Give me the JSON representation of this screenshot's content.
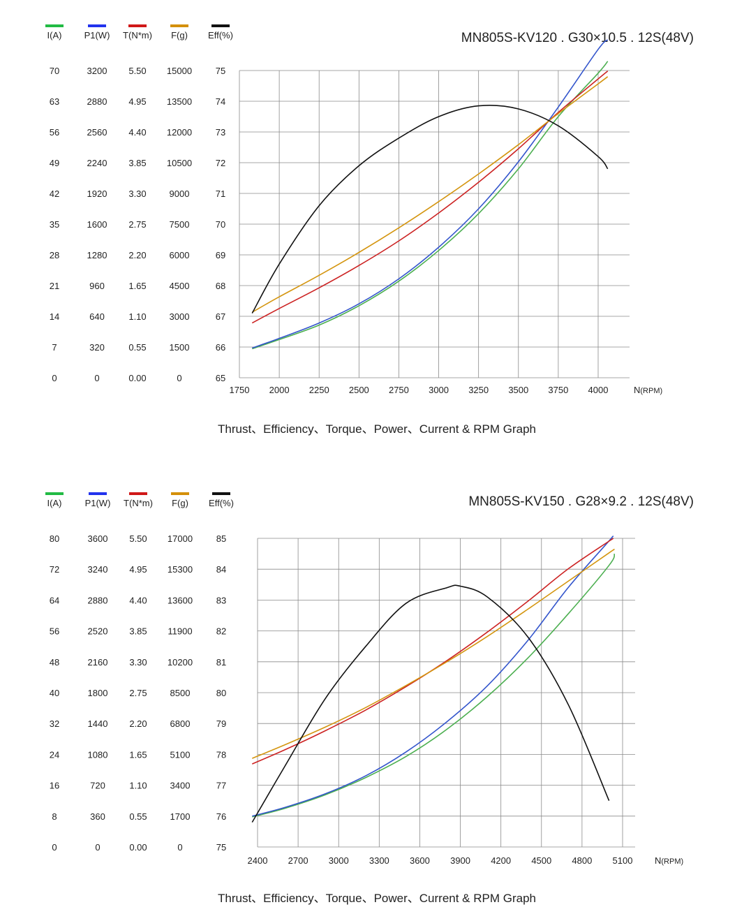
{
  "chart_data": [
    {
      "type": "line",
      "title": "MN805S-KV120 . G30×10.5 . 12S(48V)",
      "caption": "Thrust、Efficiency、Torque、Power、Current & RPM Graph",
      "xlabel_main": "N",
      "xlabel_unit": "(RPM)",
      "x_ticks": [
        "1750",
        "2000",
        "2250",
        "2500",
        "2750",
        "3000",
        "3250",
        "3500",
        "3750",
        "4000"
      ],
      "x_values": [
        1750,
        2000,
        2250,
        2500,
        2750,
        3000,
        3250,
        3500,
        3750,
        4000
      ],
      "xlim": [
        1750,
        4200
      ],
      "axes": [
        {
          "label": "I(A)",
          "color": "#22bb44",
          "ticks": [
            "70",
            "63",
            "56",
            "49",
            "42",
            "35",
            "28",
            "21",
            "14",
            "7",
            "0"
          ]
        },
        {
          "label": "P1(W)",
          "color": "#2233ee",
          "ticks": [
            "3200",
            "2880",
            "2560",
            "2240",
            "1920",
            "1600",
            "1280",
            "960",
            "640",
            "320",
            "0"
          ]
        },
        {
          "label": "T(N*m)",
          "color": "#d01818",
          "ticks": [
            "5.50",
            "4.95",
            "4.40",
            "3.85",
            "3.30",
            "2.75",
            "2.20",
            "1.65",
            "1.10",
            "0.55",
            "0.00"
          ]
        },
        {
          "label": "F(g)",
          "color": "#d4900a",
          "ticks": [
            "15000",
            "13500",
            "12000",
            "10500",
            "9000",
            "7500",
            "6000",
            "4500",
            "3000",
            "1500",
            "0"
          ]
        },
        {
          "label": "Eff(%)",
          "color": "#111111",
          "ticks": [
            "75",
            "74",
            "73",
            "72",
            "71",
            "70",
            "69",
            "68",
            "67",
            "66",
            "65"
          ]
        }
      ],
      "series": [
        {
          "name": "I(A)",
          "color": "#4caf50",
          "axis": 0,
          "x": [
            1830,
            2000,
            2250,
            2500,
            2750,
            3000,
            3250,
            3500,
            3750,
            4000,
            4060
          ],
          "y": [
            6.6,
            8.7,
            12.0,
            16.4,
            22.0,
            29.0,
            37.4,
            47.6,
            59.5,
            69.4,
            72.1
          ]
        },
        {
          "name": "P1(W)",
          "color": "#3355cc",
          "axis": 1,
          "x": [
            1830,
            2000,
            2250,
            2500,
            2750,
            3000,
            3250,
            3500,
            3750,
            4000,
            4060
          ],
          "y": [
            310,
            410,
            570,
            770,
            1030,
            1360,
            1760,
            2250,
            2820,
            3420,
            3520
          ]
        },
        {
          "name": "T(N*m)",
          "color": "#cc2222",
          "axis": 2,
          "x": [
            1830,
            2000,
            2250,
            2500,
            2750,
            3000,
            3250,
            3500,
            3750,
            4000,
            4060
          ],
          "y": [
            0.98,
            1.24,
            1.61,
            2.01,
            2.45,
            2.95,
            3.5,
            4.1,
            4.75,
            5.35,
            5.49
          ]
        },
        {
          "name": "F(g)",
          "color": "#d4950f",
          "axis": 3,
          "x": [
            1830,
            2000,
            2250,
            2500,
            2750,
            3000,
            3250,
            3500,
            3750,
            4000,
            4060
          ],
          "y": [
            3200,
            3950,
            5000,
            6120,
            7320,
            8600,
            9950,
            11380,
            12900,
            14350,
            14700
          ]
        },
        {
          "name": "Eff(%)",
          "color": "#111111",
          "axis": 4,
          "x": [
            1830,
            2000,
            2250,
            2500,
            2750,
            3000,
            3250,
            3500,
            3750,
            4000,
            4060
          ],
          "y": [
            67.1,
            68.7,
            70.6,
            71.9,
            72.8,
            73.5,
            73.85,
            73.75,
            73.2,
            72.2,
            71.8
          ]
        }
      ]
    },
    {
      "type": "line",
      "title": "MN805S-KV150 . G28×9.2 . 12S(48V)",
      "caption": "Thrust、Efficiency、Torque、Power、Current & RPM Graph",
      "xlabel_main": "N",
      "xlabel_unit": "(RPM)",
      "x_ticks": [
        "2400",
        "2700",
        "3000",
        "3300",
        "3600",
        "3900",
        "4200",
        "4500",
        "4800",
        "5100"
      ],
      "x_values": [
        2400,
        2700,
        3000,
        3300,
        3600,
        3900,
        4200,
        4500,
        4800,
        5100
      ],
      "xlim": [
        2400,
        5100
      ],
      "axes": [
        {
          "label": "I(A)",
          "color": "#22bb44",
          "ticks": [
            "80",
            "72",
            "64",
            "56",
            "48",
            "40",
            "32",
            "24",
            "16",
            "8",
            "0"
          ]
        },
        {
          "label": "P1(W)",
          "color": "#2233ee",
          "ticks": [
            "3600",
            "3240",
            "2880",
            "2520",
            "2160",
            "1800",
            "1440",
            "1080",
            "720",
            "360",
            "0"
          ]
        },
        {
          "label": "T(N*m)",
          "color": "#d01818",
          "ticks": [
            "5.50",
            "4.95",
            "4.40",
            "3.85",
            "3.30",
            "2.75",
            "2.20",
            "1.65",
            "1.10",
            "0.55",
            "0.00"
          ]
        },
        {
          "label": "F(g)",
          "color": "#d4900a",
          "ticks": [
            "17000",
            "15300",
            "13600",
            "11900",
            "10200",
            "8500",
            "6800",
            "5100",
            "3400",
            "1700",
            "0"
          ]
        },
        {
          "label": "Eff(%)",
          "color": "#111111",
          "ticks": [
            "85",
            "84",
            "83",
            "82",
            "81",
            "80",
            "79",
            "78",
            "77",
            "76",
            "75"
          ]
        }
      ],
      "series": [
        {
          "name": "I(A)",
          "color": "#4caf50",
          "axis": 0,
          "x": [
            2360,
            2600,
            2900,
            3200,
            3500,
            3800,
            4100,
            4400,
            4700,
            5000,
            5040
          ],
          "y": [
            7.8,
            10.0,
            13.5,
            18.0,
            23.5,
            30.5,
            39.0,
            49.0,
            60.5,
            73.0,
            76.0
          ]
        },
        {
          "name": "P1(W)",
          "color": "#3355cc",
          "axis": 1,
          "x": [
            2360,
            2600,
            2900,
            3200,
            3500,
            3800,
            4100,
            4400,
            4700,
            5000,
            5020
          ],
          "y": [
            360,
            460,
            620,
            830,
            1110,
            1460,
            1880,
            2410,
            3030,
            3570,
            3610
          ]
        },
        {
          "name": "T(N*m)",
          "color": "#cc2222",
          "axis": 2,
          "x": [
            2360,
            2600,
            2900,
            3200,
            3500,
            3800,
            4100,
            4400,
            4700,
            5000,
            5020
          ],
          "y": [
            1.48,
            1.73,
            2.07,
            2.44,
            2.86,
            3.32,
            3.83,
            4.38,
            4.96,
            5.45,
            5.48
          ]
        },
        {
          "name": "F(g)",
          "color": "#d4950f",
          "axis": 3,
          "x": [
            2360,
            2600,
            2900,
            3200,
            3500,
            3800,
            4100,
            4400,
            4700,
            5000,
            5040
          ],
          "y": [
            4880,
            5620,
            6600,
            7680,
            8900,
            10200,
            11600,
            13100,
            14650,
            16200,
            16400
          ]
        },
        {
          "name": "Eff(%)",
          "color": "#111111",
          "axis": 4,
          "x": [
            2360,
            2600,
            2900,
            3200,
            3500,
            3800,
            3900,
            4100,
            4400,
            4700,
            5000
          ],
          "y": [
            75.8,
            77.6,
            79.8,
            81.5,
            82.9,
            83.4,
            83.45,
            83.1,
            81.8,
            79.6,
            76.5
          ]
        }
      ]
    }
  ]
}
